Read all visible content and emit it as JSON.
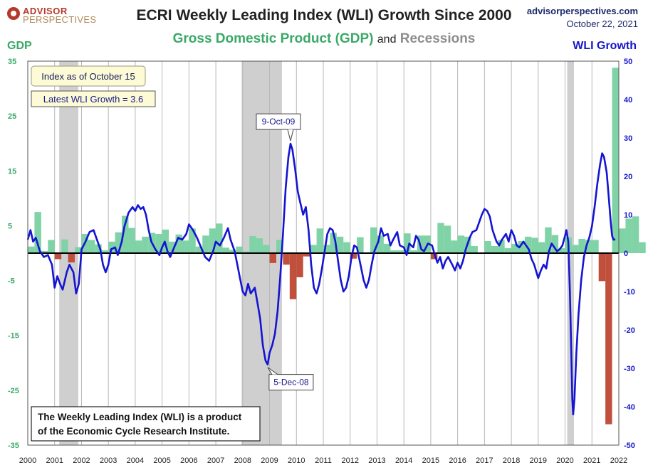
{
  "header": {
    "title": "ECRI Weekly Leading Index (WLI) Growth Since 2000",
    "subtitle_gdp": "Gross Domestic Product (GDP)",
    "subtitle_and": "and",
    "subtitle_recessions": "Recessions",
    "logo_line1": "ADVISOR",
    "logo_line2": "PERSPECTIVES",
    "website": "advisorperspectives.com",
    "date": "October 22, 2021",
    "left_axis_title": "GDP",
    "right_axis_title": "WLI Growth"
  },
  "colors": {
    "gdp_positive": "#7fd3a6",
    "gdp_negative": "#c0503c",
    "wli_line": "#1414d2",
    "recession": "#cfcfcf",
    "note_box_fill": "#fdfbd6",
    "zero_line": "#000000"
  },
  "boxes": {
    "index_date": "Index as of October 15",
    "latest_wli": "Latest WLI Growth = 3.6",
    "note_line1": "The Weekly Leading Index (WLI) is a product",
    "note_line2": "of the Economic Cycle Research Institute."
  },
  "chart_data": {
    "type": "line",
    "x_axis": {
      "min": 2000,
      "max": 2022,
      "ticks": [
        "2000",
        "2001",
        "2002",
        "2003",
        "2004",
        "2005",
        "2006",
        "2007",
        "2008",
        "2009",
        "2010",
        "2011",
        "2012",
        "2013",
        "2014",
        "2015",
        "2016",
        "2017",
        "2018",
        "2019",
        "2020",
        "2021",
        "2022"
      ]
    },
    "y_left": {
      "label": "GDP",
      "min": -35,
      "max": 35,
      "ticks": [
        35,
        25,
        15,
        5,
        -5,
        -15,
        -25,
        -35
      ]
    },
    "y_right": {
      "label": "WLI Growth",
      "min": -50,
      "max": 50,
      "ticks": [
        50,
        40,
        30,
        20,
        10,
        0,
        -10,
        -20,
        -30,
        -40,
        -50
      ]
    },
    "grid": "vertical lines at each year",
    "recessions": [
      {
        "start": 2001.17,
        "end": 2001.88
      },
      {
        "start": 2007.96,
        "end": 2009.46
      },
      {
        "start": 2020.08,
        "end": 2020.33
      }
    ],
    "gdp_quarterly": {
      "start": 2000.0,
      "step": 0.25,
      "values": [
        1.2,
        7.5,
        0.4,
        2.4,
        -1.1,
        2.5,
        -1.7,
        1.1,
        3.5,
        2.4,
        1.6,
        0.5,
        2.1,
        3.8,
        6.8,
        4.6,
        2.3,
        3.0,
        3.7,
        3.5,
        4.3,
        2.1,
        3.4,
        2.3,
        4.5,
        1.2,
        3.2,
        4.5,
        5.4,
        1.0,
        0.6,
        1.2,
        0.3,
        3.1,
        2.7,
        1.5,
        -1.8,
        2.4,
        -2.1,
        -8.4,
        -4.4,
        -0.6,
        1.5,
        4.5,
        1.5,
        3.7,
        3.0,
        2.0,
        -1.0,
        2.9,
        -0.1,
        4.7,
        3.2,
        1.7,
        0.5,
        0.5,
        3.6,
        0.5,
        3.2,
        3.2,
        -1.1,
        5.5,
        5.0,
        2.3,
        3.2,
        3.0,
        1.3,
        0.1,
        2.2,
        1.3,
        2.4,
        0.9,
        1.7,
        2.2,
        3.0,
        2.8,
        2.0,
        4.7,
        3.3,
        0.9,
        2.9,
        1.5,
        2.6,
        2.4,
        2.4,
        -5.1,
        -31.2,
        33.8,
        4.5,
        6.3,
        6.7,
        2.0
      ]
    },
    "wli_series": [
      [
        2000.0,
        3.5
      ],
      [
        2000.1,
        6.0
      ],
      [
        2000.2,
        3.0
      ],
      [
        2000.3,
        4.0
      ],
      [
        2000.45,
        0.5
      ],
      [
        2000.6,
        -1.0
      ],
      [
        2000.75,
        -0.5
      ],
      [
        2000.9,
        -3.0
      ],
      [
        2001.0,
        -9.0
      ],
      [
        2001.1,
        -6.0
      ],
      [
        2001.2,
        -8.0
      ],
      [
        2001.3,
        -9.5
      ],
      [
        2001.45,
        -5.0
      ],
      [
        2001.55,
        -3.0
      ],
      [
        2001.7,
        -5.0
      ],
      [
        2001.8,
        -10.5
      ],
      [
        2001.9,
        -8.0
      ],
      [
        2002.0,
        1.0
      ],
      [
        2002.15,
        3.0
      ],
      [
        2002.3,
        5.5
      ],
      [
        2002.45,
        6.0
      ],
      [
        2002.55,
        4.0
      ],
      [
        2002.7,
        1.0
      ],
      [
        2002.8,
        -3.0
      ],
      [
        2002.9,
        -5.0
      ],
      [
        2003.0,
        -3.0
      ],
      [
        2003.1,
        1.0
      ],
      [
        2003.25,
        1.5
      ],
      [
        2003.35,
        -0.5
      ],
      [
        2003.5,
        3.0
      ],
      [
        2003.6,
        7.0
      ],
      [
        2003.75,
        10.5
      ],
      [
        2003.9,
        12.0
      ],
      [
        2004.0,
        11.0
      ],
      [
        2004.1,
        12.5
      ],
      [
        2004.2,
        11.5
      ],
      [
        2004.3,
        12.0
      ],
      [
        2004.4,
        10.0
      ],
      [
        2004.5,
        6.0
      ],
      [
        2004.6,
        3.0
      ],
      [
        2004.75,
        1.0
      ],
      [
        2004.9,
        -0.5
      ],
      [
        2005.0,
        1.5
      ],
      [
        2005.1,
        3.0
      ],
      [
        2005.2,
        0.5
      ],
      [
        2005.3,
        -1.0
      ],
      [
        2005.45,
        1.5
      ],
      [
        2005.6,
        4.0
      ],
      [
        2005.75,
        3.5
      ],
      [
        2005.9,
        5.0
      ],
      [
        2006.0,
        7.5
      ],
      [
        2006.15,
        6.0
      ],
      [
        2006.3,
        4.0
      ],
      [
        2006.45,
        1.5
      ],
      [
        2006.6,
        -1.0
      ],
      [
        2006.75,
        -2.0
      ],
      [
        2006.9,
        0.5
      ],
      [
        2007.0,
        3.0
      ],
      [
        2007.15,
        2.0
      ],
      [
        2007.3,
        4.0
      ],
      [
        2007.45,
        6.5
      ],
      [
        2007.55,
        3.5
      ],
      [
        2007.7,
        0.5
      ],
      [
        2007.8,
        -3.0
      ],
      [
        2007.9,
        -6.5
      ],
      [
        2008.0,
        -10.0
      ],
      [
        2008.1,
        -11.0
      ],
      [
        2008.2,
        -8.0
      ],
      [
        2008.3,
        -10.5
      ],
      [
        2008.45,
        -9.0
      ],
      [
        2008.55,
        -13.0
      ],
      [
        2008.65,
        -17.0
      ],
      [
        2008.75,
        -24.0
      ],
      [
        2008.85,
        -28.0
      ],
      [
        2008.93,
        -29.0
      ],
      [
        2009.0,
        -26.0
      ],
      [
        2009.1,
        -24.0
      ],
      [
        2009.2,
        -21.0
      ],
      [
        2009.3,
        -15.0
      ],
      [
        2009.4,
        -6.0
      ],
      [
        2009.5,
        5.0
      ],
      [
        2009.6,
        17.0
      ],
      [
        2009.7,
        25.0
      ],
      [
        2009.78,
        28.5
      ],
      [
        2009.85,
        27.0
      ],
      [
        2009.95,
        22.0
      ],
      [
        2010.05,
        16.0
      ],
      [
        2010.15,
        13.0
      ],
      [
        2010.25,
        10.0
      ],
      [
        2010.35,
        12.0
      ],
      [
        2010.45,
        6.0
      ],
      [
        2010.55,
        -3.0
      ],
      [
        2010.65,
        -9.0
      ],
      [
        2010.75,
        -10.5
      ],
      [
        2010.85,
        -8.0
      ],
      [
        2010.95,
        -4.0
      ],
      [
        2011.05,
        0.5
      ],
      [
        2011.15,
        5.0
      ],
      [
        2011.25,
        6.5
      ],
      [
        2011.35,
        6.0
      ],
      [
        2011.45,
        3.0
      ],
      [
        2011.55,
        -2.0
      ],
      [
        2011.65,
        -7.0
      ],
      [
        2011.75,
        -10.0
      ],
      [
        2011.85,
        -9.0
      ],
      [
        2011.95,
        -6.0
      ],
      [
        2012.05,
        -1.0
      ],
      [
        2012.15,
        2.0
      ],
      [
        2012.25,
        1.5
      ],
      [
        2012.4,
        -3.5
      ],
      [
        2012.5,
        -7.0
      ],
      [
        2012.6,
        -9.0
      ],
      [
        2012.7,
        -7.0
      ],
      [
        2012.8,
        -3.0
      ],
      [
        2012.9,
        0.5
      ],
      [
        2013.05,
        3.0
      ],
      [
        2013.15,
        6.5
      ],
      [
        2013.25,
        4.5
      ],
      [
        2013.4,
        5.0
      ],
      [
        2013.5,
        2.0
      ],
      [
        2013.6,
        3.5
      ],
      [
        2013.75,
        5.5
      ],
      [
        2013.85,
        2.0
      ],
      [
        2014.0,
        1.5
      ],
      [
        2014.1,
        -0.5
      ],
      [
        2014.2,
        2.5
      ],
      [
        2014.35,
        1.5
      ],
      [
        2014.45,
        4.5
      ],
      [
        2014.55,
        3.5
      ],
      [
        2014.65,
        1.0
      ],
      [
        2014.75,
        0.5
      ],
      [
        2014.9,
        2.5
      ],
      [
        2015.05,
        2.0
      ],
      [
        2015.15,
        -0.5
      ],
      [
        2015.25,
        -2.5
      ],
      [
        2015.35,
        -1.0
      ],
      [
        2015.45,
        -4.0
      ],
      [
        2015.55,
        -2.0
      ],
      [
        2015.65,
        -1.0
      ],
      [
        2015.8,
        -3.0
      ],
      [
        2015.9,
        -4.5
      ],
      [
        2016.0,
        -2.5
      ],
      [
        2016.1,
        -4.0
      ],
      [
        2016.2,
        -2.0
      ],
      [
        2016.3,
        1.0
      ],
      [
        2016.45,
        4.0
      ],
      [
        2016.55,
        5.5
      ],
      [
        2016.7,
        6.0
      ],
      [
        2016.8,
        8.0
      ],
      [
        2016.9,
        10.0
      ],
      [
        2017.0,
        11.5
      ],
      [
        2017.1,
        11.0
      ],
      [
        2017.2,
        9.5
      ],
      [
        2017.3,
        6.0
      ],
      [
        2017.45,
        3.0
      ],
      [
        2017.55,
        2.0
      ],
      [
        2017.65,
        3.5
      ],
      [
        2017.8,
        5.0
      ],
      [
        2017.9,
        3.0
      ],
      [
        2018.0,
        6.0
      ],
      [
        2018.1,
        4.5
      ],
      [
        2018.2,
        2.0
      ],
      [
        2018.3,
        1.5
      ],
      [
        2018.45,
        3.0
      ],
      [
        2018.55,
        2.0
      ],
      [
        2018.65,
        1.0
      ],
      [
        2018.75,
        -1.5
      ],
      [
        2018.85,
        -3.0
      ],
      [
        2019.0,
        -6.5
      ],
      [
        2019.1,
        -4.5
      ],
      [
        2019.2,
        -3.0
      ],
      [
        2019.3,
        -4.0
      ],
      [
        2019.4,
        0.5
      ],
      [
        2019.5,
        2.5
      ],
      [
        2019.6,
        1.5
      ],
      [
        2019.7,
        0.5
      ],
      [
        2019.8,
        1.0
      ],
      [
        2019.9,
        2.0
      ],
      [
        2020.0,
        4.5
      ],
      [
        2020.05,
        6.0
      ],
      [
        2020.12,
        3.0
      ],
      [
        2020.18,
        -10.0
      ],
      [
        2020.23,
        -25.0
      ],
      [
        2020.27,
        -38.0
      ],
      [
        2020.3,
        -42.0
      ],
      [
        2020.35,
        -38.0
      ],
      [
        2020.42,
        -26.0
      ],
      [
        2020.5,
        -16.0
      ],
      [
        2020.6,
        -7.0
      ],
      [
        2020.7,
        -1.0
      ],
      [
        2020.8,
        2.0
      ],
      [
        2020.9,
        4.0
      ],
      [
        2021.0,
        7.0
      ],
      [
        2021.1,
        12.0
      ],
      [
        2021.2,
        18.0
      ],
      [
        2021.3,
        23.0
      ],
      [
        2021.38,
        26.0
      ],
      [
        2021.45,
        25.0
      ],
      [
        2021.55,
        21.0
      ],
      [
        2021.62,
        15.0
      ],
      [
        2021.7,
        8.0
      ],
      [
        2021.75,
        4.5
      ],
      [
        2021.8,
        3.5
      ],
      [
        2021.87,
        3.6
      ]
    ],
    "annotations": [
      {
        "label": "9-Oct-09",
        "x": 2009.78,
        "y_right": 28.5
      },
      {
        "label": "5-Dec-08",
        "x": 2008.93,
        "y_right": -29.0
      }
    ]
  }
}
